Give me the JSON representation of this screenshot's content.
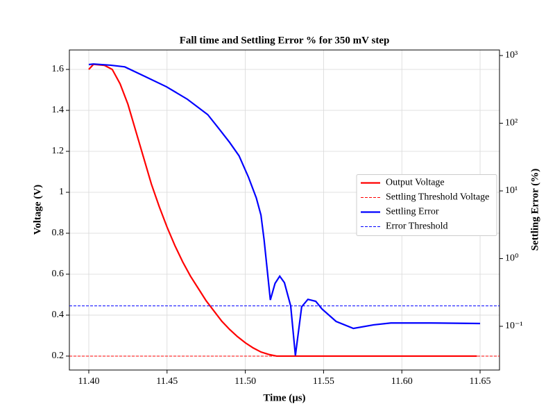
{
  "chart_data": {
    "type": "line",
    "title": "Fall time and Settling Error % for 350 mV step",
    "xlabel": "Time (μs)",
    "ylabel": "Voltage (V)",
    "y2label": "Settling Error (%)",
    "xlim": [
      11.3876,
      11.6624
    ],
    "xticks": [
      {
        "value": 11.4,
        "label": "11.40"
      },
      11.45,
      {
        "value": 11.5,
        "label": "11.50"
      },
      11.55,
      {
        "value": 11.6,
        "label": "11.60"
      },
      11.65
    ],
    "ylim": [
      0.132,
      1.695
    ],
    "yticks": [
      0.2,
      0.4,
      0.6,
      0.8,
      1.0,
      1.2,
      1.4,
      1.6
    ],
    "y2lim": [
      0.0226,
      1208
    ],
    "y2scale": "log",
    "y2ticks": [
      {
        "value": 0.1,
        "label": "10⁻¹"
      },
      {
        "value": 1,
        "label": "10⁰"
      },
      {
        "value": 10,
        "label": "10¹"
      },
      {
        "value": 100,
        "label": "10²"
      },
      {
        "value": 1000,
        "label": "10³"
      }
    ],
    "grid": true,
    "legend": "center right",
    "series": [
      {
        "name": "Output Voltage",
        "color": "#ff0000",
        "style": "solid",
        "axis": "y",
        "x": [
          11.4,
          11.403,
          11.41,
          11.415,
          11.42,
          11.425,
          11.43,
          11.435,
          11.44,
          11.445,
          11.45,
          11.455,
          11.46,
          11.465,
          11.47,
          11.475,
          11.48,
          11.485,
          11.49,
          11.495,
          11.5,
          11.505,
          11.51,
          11.515,
          11.52,
          11.53,
          11.55,
          11.6,
          11.648
        ],
        "values": [
          1.6,
          1.625,
          1.62,
          1.6,
          1.53,
          1.43,
          1.3,
          1.17,
          1.04,
          0.93,
          0.83,
          0.74,
          0.66,
          0.59,
          0.53,
          0.47,
          0.42,
          0.37,
          0.33,
          0.295,
          0.265,
          0.24,
          0.22,
          0.208,
          0.2,
          0.2,
          0.2,
          0.2,
          0.2
        ]
      },
      {
        "name": "Settling Threshold Voltage",
        "color": "#ff0000",
        "style": "dashed",
        "axis": "y",
        "value": 0.2
      },
      {
        "name": "Settling Error",
        "color": "#0000ff",
        "style": "solid",
        "axis": "y2",
        "x": [
          11.4,
          11.403,
          11.414,
          11.423,
          11.436,
          11.4497,
          11.463,
          11.476,
          11.483,
          11.49,
          11.496,
          11.502,
          11.507,
          11.51,
          11.512,
          11.516,
          11.519,
          11.522,
          11.525,
          11.529,
          11.532,
          11.536,
          11.54,
          11.545,
          11.549,
          11.558,
          11.569,
          11.582,
          11.593,
          11.618,
          11.65
        ],
        "values": [
          736,
          750,
          720,
          680,
          490,
          345,
          226,
          134,
          84,
          52,
          33,
          16,
          7.9,
          4.4,
          1.9,
          0.245,
          0.43,
          0.55,
          0.44,
          0.2,
          0.037,
          0.194,
          0.25,
          0.234,
          0.18,
          0.118,
          0.093,
          0.105,
          0.112,
          0.112,
          0.11
        ]
      },
      {
        "name": "Error Threshold",
        "color": "#0000ff",
        "style": "dashed",
        "axis": "y2",
        "value": 0.2
      }
    ]
  }
}
